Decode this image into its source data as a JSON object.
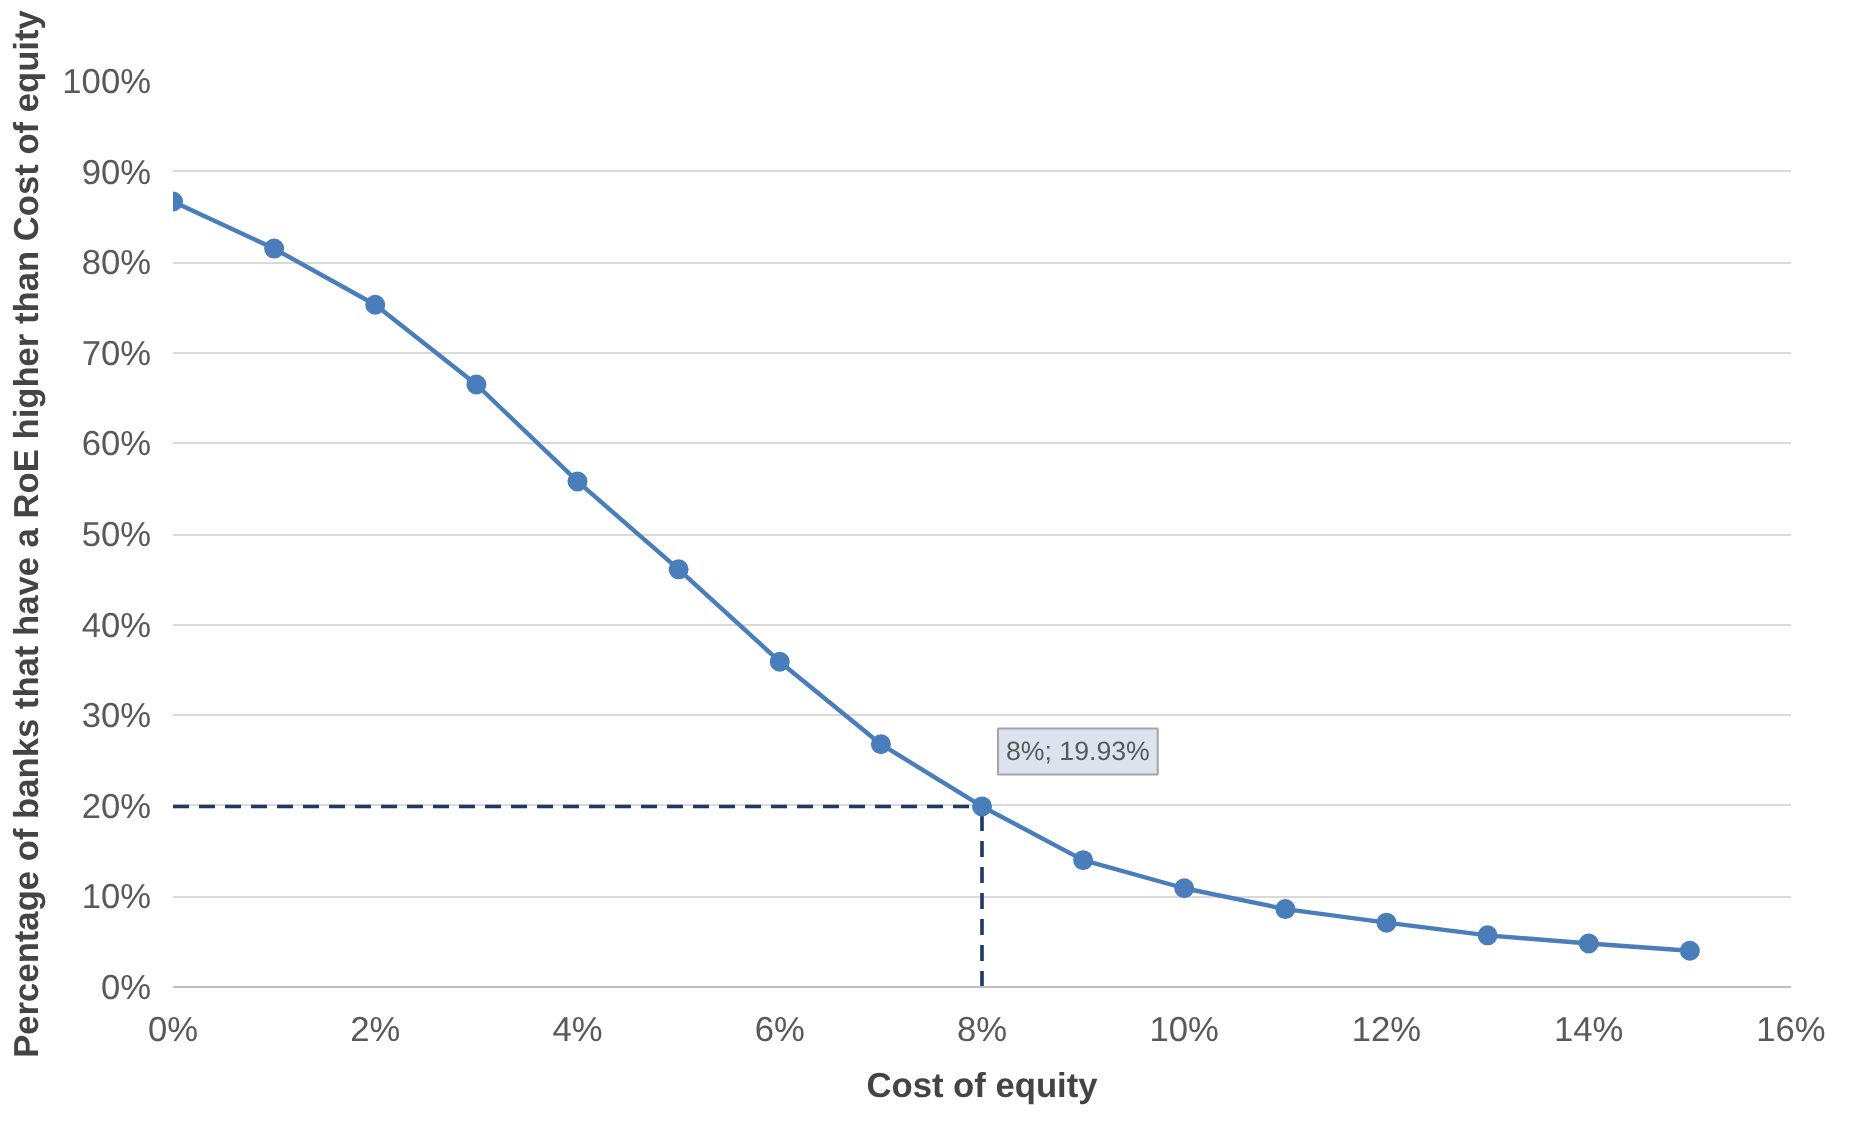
{
  "chart_data": {
    "type": "line",
    "xlabel": "Cost of equity",
    "ylabel": "Percentage of banks that have a RoE higher than Cost of equity",
    "x": [
      0,
      1,
      2,
      3,
      4,
      5,
      6,
      7,
      8,
      9,
      10,
      11,
      12,
      13,
      14,
      15
    ],
    "series": [
      {
        "color": "#4a7ebb",
        "values": [
          86.7,
          81.5,
          75.3,
          66.5,
          55.8,
          46.1,
          35.9,
          26.8,
          19.93,
          14.0,
          10.9,
          8.6,
          7.1,
          5.7,
          4.8,
          4.0
        ]
      }
    ],
    "marker": "circle",
    "line_style": "solid",
    "grid": "y",
    "xlim": [
      0,
      16
    ],
    "xticks": [
      {
        "value": 0,
        "label": "0%"
      },
      {
        "value": 2,
        "label": "2%"
      },
      {
        "value": 4,
        "label": "4%"
      },
      {
        "value": 6,
        "label": "6%"
      },
      {
        "value": 8,
        "label": "8%"
      },
      {
        "value": 10,
        "label": "10%"
      },
      {
        "value": 12,
        "label": "12%"
      },
      {
        "value": 14,
        "label": "14%"
      },
      {
        "value": 16,
        "label": "16%"
      }
    ],
    "ylim": [
      0,
      100
    ],
    "yticks": [
      {
        "value": 0,
        "label": "0%"
      },
      {
        "value": 10,
        "label": "10%"
      },
      {
        "value": 20,
        "label": "20%"
      },
      {
        "value": 30,
        "label": "30%"
      },
      {
        "value": 40,
        "label": "40%"
      },
      {
        "value": 50,
        "label": "50%"
      },
      {
        "value": 60,
        "label": "60%"
      },
      {
        "value": 70,
        "label": "70%"
      },
      {
        "value": 80,
        "label": "80%"
      },
      {
        "value": 90,
        "label": "90%"
      },
      {
        "value": 100,
        "label": "100%"
      }
    ],
    "ref_lines": [
      {
        "axis": "y",
        "value": 19.93,
        "color": "#1f3864",
        "line_style": "dashed"
      },
      {
        "axis": "x",
        "value": 8,
        "color": "#1f3864",
        "line_style": "dashed"
      }
    ],
    "annotations": [
      {
        "text": "8%; 19.93%",
        "x": 8,
        "y": 19.93
      }
    ]
  }
}
